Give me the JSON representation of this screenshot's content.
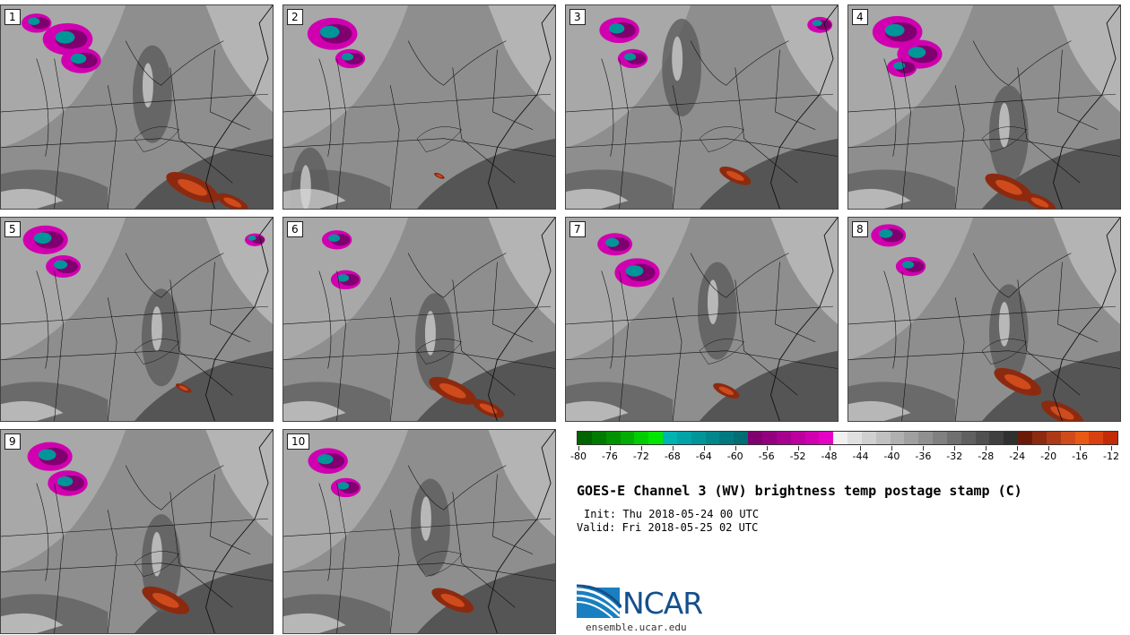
{
  "panels": [
    {
      "label": "1",
      "cold": [
        [
          75,
          38,
          1.0
        ],
        [
          90,
          62,
          0.8
        ],
        [
          40,
          20,
          0.6
        ]
      ],
      "warm": [
        [
          215,
          205,
          1.0
        ],
        [
          260,
          222,
          0.6
        ]
      ],
      "plume": [
        [
          170,
          100
        ]
      ]
    },
    {
      "label": "2",
      "cold": [
        [
          55,
          32,
          1.0
        ],
        [
          75,
          60,
          0.6
        ]
      ],
      "warm": [
        [
          175,
          192,
          0.2
        ]
      ],
      "plume": [
        [
          30,
          215
        ]
      ]
    },
    {
      "label": "3",
      "cold": [
        [
          60,
          28,
          0.8
        ],
        [
          75,
          60,
          0.6
        ],
        [
          285,
          22,
          0.5
        ]
      ],
      "warm": [
        [
          190,
          192,
          0.6
        ]
      ],
      "plume": [
        [
          130,
          70
        ]
      ]
    },
    {
      "label": "4",
      "cold": [
        [
          55,
          30,
          1.0
        ],
        [
          80,
          55,
          0.9
        ],
        [
          60,
          70,
          0.6
        ]
      ],
      "warm": [
        [
          180,
          205,
          0.9
        ],
        [
          215,
          222,
          0.6
        ]
      ],
      "plume": [
        [
          180,
          145
        ]
      ]
    },
    {
      "label": "5",
      "cold": [
        [
          50,
          25,
          0.9
        ],
        [
          70,
          55,
          0.7
        ],
        [
          285,
          25,
          0.4
        ]
      ],
      "warm": [
        [
          205,
          192,
          0.3
        ]
      ],
      "plume": [
        [
          180,
          135
        ]
      ]
    },
    {
      "label": "6",
      "cold": [
        [
          60,
          25,
          0.6
        ],
        [
          70,
          70,
          0.6
        ]
      ],
      "warm": [
        [
          190,
          195,
          0.9
        ],
        [
          230,
          215,
          0.6
        ]
      ],
      "plume": [
        [
          170,
          140
        ]
      ]
    },
    {
      "label": "7",
      "cold": [
        [
          55,
          30,
          0.7
        ],
        [
          80,
          62,
          0.9
        ]
      ],
      "warm": [
        [
          180,
          195,
          0.5
        ]
      ],
      "plume": [
        [
          170,
          105
        ]
      ]
    },
    {
      "label": "8",
      "cold": [
        [
          45,
          20,
          0.7
        ],
        [
          70,
          55,
          0.6
        ]
      ],
      "warm": [
        [
          190,
          185,
          0.9
        ],
        [
          240,
          220,
          0.8
        ]
      ],
      "plume": [
        [
          180,
          130
        ]
      ]
    },
    {
      "label": "9",
      "cold": [
        [
          55,
          30,
          0.9
        ],
        [
          75,
          60,
          0.8
        ]
      ],
      "warm": [
        [
          185,
          192,
          0.9
        ]
      ],
      "plume": [
        [
          180,
          150
        ]
      ]
    },
    {
      "label": "10",
      "cold": [
        [
          50,
          35,
          0.8
        ],
        [
          70,
          65,
          0.6
        ]
      ],
      "warm": [
        [
          190,
          192,
          0.8
        ]
      ],
      "plume": [
        [
          165,
          110
        ]
      ]
    }
  ],
  "colorbar": {
    "colors": [
      "#006400",
      "#007a00",
      "#009200",
      "#00ad00",
      "#00cc00",
      "#00e600",
      "#00b3b3",
      "#00a3a6",
      "#009599",
      "#00878c",
      "#007a80",
      "#006e73",
      "#800070",
      "#93007f",
      "#a7008f",
      "#bc00a0",
      "#d000b0",
      "#e600c5",
      "#f0f0f0",
      "#e0e0e0",
      "#d0d0d0",
      "#c0c0c0",
      "#b0b0b0",
      "#a0a0a0",
      "#909090",
      "#808080",
      "#707070",
      "#606060",
      "#505050",
      "#404040",
      "#303030",
      "#6b1a0a",
      "#8c2a10",
      "#ad3a16",
      "#cf4b1c",
      "#e85a14",
      "#d94010",
      "#c32b06"
    ],
    "labels": [
      "-80",
      "-76",
      "-72",
      "-68",
      "-64",
      "-60",
      "-56",
      "-52",
      "-48",
      "-44",
      "-40",
      "-36",
      "-32",
      "-28",
      "-24",
      "-20",
      "-16",
      "-12"
    ]
  },
  "title": "GOES-E Channel 3 (WV) brightness temp postage stamp (C)",
  "init": "Init: Thu 2018-05-24 00 UTC",
  "valid": "Valid: Fri 2018-05-25 02 UTC",
  "logo_text": "NCAR",
  "site": "ensemble.ucar.edu"
}
